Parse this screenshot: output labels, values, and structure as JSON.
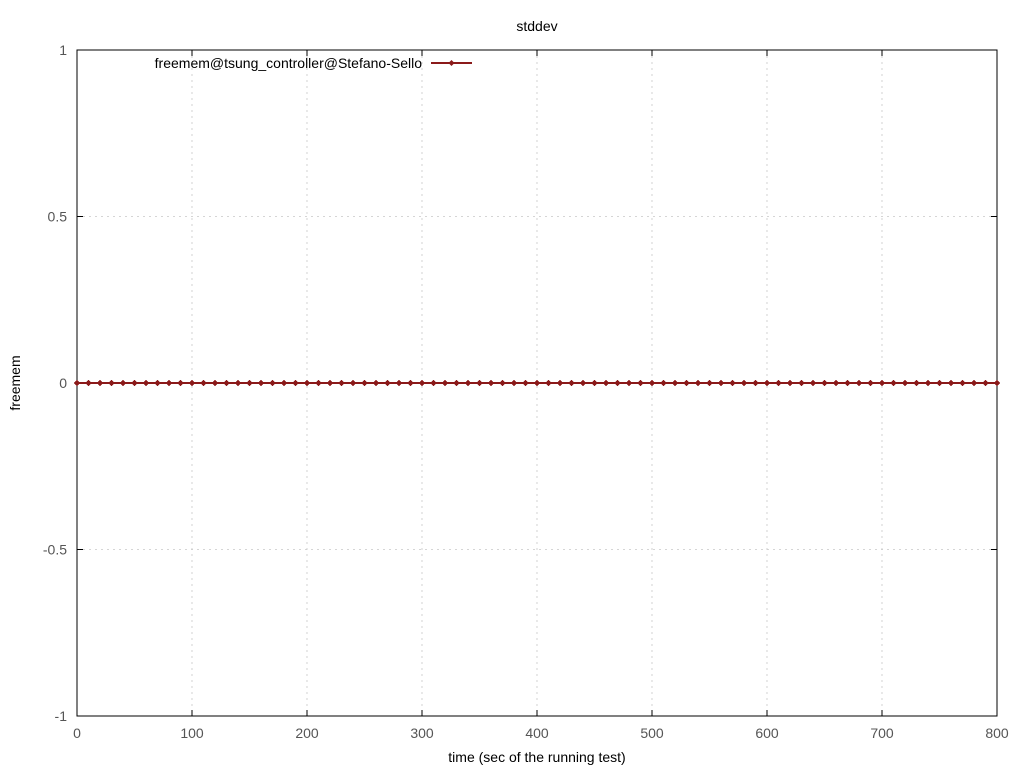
{
  "chart_data": {
    "type": "line",
    "title": "stddev",
    "xlabel": "time (sec of the running test)",
    "ylabel": "freemem",
    "xlim": [
      0,
      800
    ],
    "ylim": [
      -1,
      1
    ],
    "xticks": [
      0,
      100,
      200,
      300,
      400,
      500,
      600,
      700,
      800
    ],
    "xtick_labels": [
      "0",
      "100",
      "200",
      "300",
      "400",
      "500",
      "600",
      "700",
      "800"
    ],
    "yticks": [
      -1,
      -0.5,
      0,
      0.5,
      1
    ],
    "ytick_labels": [
      "-1",
      "-0.5",
      "0",
      "0.5",
      "1"
    ],
    "grid": true,
    "legend_position": "top-left",
    "series": [
      {
        "name": "freemem@tsung_controller@Stefano-Sello",
        "color": "#8b1a1a",
        "marker": "diamond",
        "x": [
          0,
          10,
          20,
          30,
          40,
          50,
          60,
          70,
          80,
          90,
          100,
          110,
          120,
          130,
          140,
          150,
          160,
          170,
          180,
          190,
          200,
          210,
          220,
          230,
          240,
          250,
          260,
          270,
          280,
          290,
          300,
          310,
          320,
          330,
          340,
          350,
          360,
          370,
          380,
          390,
          400,
          410,
          420,
          430,
          440,
          450,
          460,
          470,
          480,
          490,
          500,
          510,
          520,
          530,
          540,
          550,
          560,
          570,
          580,
          590,
          600,
          610,
          620,
          630,
          640,
          650,
          660,
          670,
          680,
          690,
          700,
          710,
          720,
          730,
          740,
          750,
          760,
          770,
          780,
          790,
          800
        ],
        "y": [
          0,
          0,
          0,
          0,
          0,
          0,
          0,
          0,
          0,
          0,
          0,
          0,
          0,
          0,
          0,
          0,
          0,
          0,
          0,
          0,
          0,
          0,
          0,
          0,
          0,
          0,
          0,
          0,
          0,
          0,
          0,
          0,
          0,
          0,
          0,
          0,
          0,
          0,
          0,
          0,
          0,
          0,
          0,
          0,
          0,
          0,
          0,
          0,
          0,
          0,
          0,
          0,
          0,
          0,
          0,
          0,
          0,
          0,
          0,
          0,
          0,
          0,
          0,
          0,
          0,
          0,
          0,
          0,
          0,
          0,
          0,
          0,
          0,
          0,
          0,
          0,
          0,
          0,
          0,
          0,
          0
        ]
      }
    ]
  }
}
